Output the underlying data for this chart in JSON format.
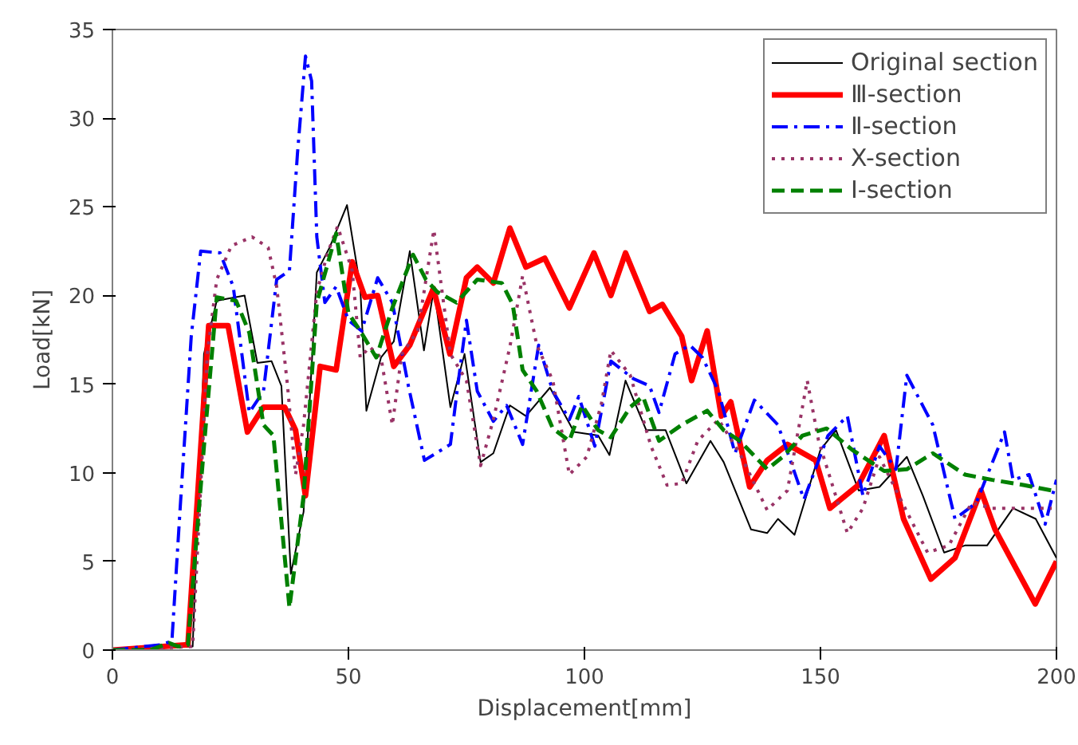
{
  "chart_data": {
    "type": "line",
    "xlabel": "Displacement[mm]",
    "ylabel": "Load[kN]",
    "xlim": [
      0,
      200
    ],
    "ylim": [
      0,
      35
    ],
    "xticks": [
      0,
      50,
      100,
      150,
      200
    ],
    "yticks": [
      0,
      5,
      10,
      15,
      20,
      25,
      30,
      35
    ],
    "grid": false,
    "legend": "top right",
    "marker": "none",
    "series": [
      {
        "name": "Original section",
        "color": "#000000",
        "line_style": "solid",
        "x": [
          0,
          17,
          19.4,
          22.1,
          28,
          30.7,
          33.7,
          35.8,
          37.8,
          40.5,
          43.3,
          46,
          49.7,
          52.5,
          53.8,
          56.9,
          59.6,
          63,
          66,
          68.1,
          71.6,
          74.6,
          78,
          80.7,
          84.2,
          87.6,
          92.7,
          97.8,
          102.9,
          105.3,
          108.7,
          113.1,
          117.2,
          121.6,
          126.7,
          129.5,
          135.3,
          138.7,
          141,
          144.5,
          150,
          153.3,
          158.1,
          162.5,
          168.3,
          171.7,
          176.2,
          180.6,
          185.3,
          190.8,
          195.6,
          200
        ],
        "values": [
          0,
          0.2,
          16.7,
          19.7,
          20,
          16.2,
          16.3,
          14.9,
          4.3,
          7.8,
          21.3,
          22.7,
          25.1,
          20.5,
          13.5,
          16.5,
          17.4,
          22.5,
          16.9,
          20.4,
          13.7,
          16.7,
          10.6,
          11.1,
          13.8,
          13.2,
          14.8,
          12.3,
          12.1,
          11.0,
          15.2,
          12.4,
          12.4,
          9.4,
          11.8,
          10.6,
          6.8,
          6.6,
          7.4,
          6.5,
          11.3,
          12.4,
          9.0,
          9.2,
          10.9,
          8.7,
          5.5,
          5.9,
          5.9,
          8.0,
          7.4,
          5.2
        ]
      },
      {
        "name": "Ⅲ-section",
        "color": "#ff0000",
        "line_style": "solid",
        "x": [
          0,
          16,
          20.4,
          24.5,
          28.6,
          32,
          36.5,
          38.8,
          40.9,
          44,
          47.4,
          50.8,
          53.5,
          56.2,
          59.6,
          63,
          68,
          71.5,
          75,
          77.3,
          80.7,
          84.2,
          87.6,
          91.6,
          96.8,
          102,
          105.6,
          108.7,
          113.8,
          116.5,
          120.6,
          122.7,
          126,
          129,
          131,
          135,
          138.7,
          143,
          149,
          152,
          158,
          163.5,
          167.6,
          173.4,
          178.5,
          184,
          187,
          195.5,
          200
        ],
        "values": [
          0,
          0.3,
          18.3,
          18.3,
          12.3,
          13.7,
          13.7,
          12.4,
          8.7,
          16,
          15.8,
          21.9,
          19.9,
          20.0,
          16,
          17.2,
          20.4,
          16.7,
          21,
          21.6,
          20.7,
          23.8,
          21.6,
          22.1,
          19.3,
          22.4,
          20.0,
          22.4,
          19.1,
          19.5,
          17.7,
          15.2,
          18,
          13.2,
          14,
          9.2,
          10.7,
          11.6,
          10.7,
          8.0,
          9.3,
          12.1,
          7.4,
          4.0,
          5.2,
          9.0,
          6.8,
          2.6,
          5.0
        ]
      },
      {
        "name": "Ⅱ-section",
        "color": "#0000ff",
        "line_style": "dashdot",
        "x": [
          0,
          10.2,
          12.6,
          14.3,
          16.7,
          18.7,
          22.8,
          25.6,
          29,
          32,
          34.8,
          37.5,
          39.2,
          40.9,
          42.2,
          43.3,
          45,
          47.4,
          50,
          52.8,
          56.2,
          59.3,
          62.7,
          66.1,
          71.6,
          73.3,
          75,
          77.3,
          80.7,
          83.5,
          86.9,
          90.3,
          93.3,
          96.8,
          98.8,
          102.2,
          105.6,
          110.4,
          113.8,
          115.8,
          119.2,
          122.3,
          125,
          128.4,
          131.9,
          136,
          141,
          146.5,
          151.6,
          155.7,
          159,
          162.5,
          166,
          168.3,
          173.8,
          178.5,
          183,
          189,
          190.8,
          194.2,
          197.6,
          200
        ],
        "values": [
          0,
          0.3,
          0.5,
          7.8,
          17.7,
          22.5,
          22.4,
          20.5,
          13.4,
          14.6,
          20.9,
          21.4,
          28.0,
          33.5,
          32.1,
          23.3,
          19.6,
          20.5,
          18.6,
          18,
          21,
          19.6,
          14.9,
          10.7,
          11.6,
          15.2,
          18.6,
          14.6,
          12.9,
          13.8,
          11.6,
          17.2,
          14.6,
          13.0,
          14.3,
          11.5,
          16.3,
          15.3,
          14.9,
          13.4,
          16.7,
          17.2,
          16.5,
          14.6,
          11.1,
          14.1,
          12.7,
          8.5,
          12.1,
          13.2,
          8.7,
          11.5,
          10.2,
          15.5,
          12.7,
          7.4,
          8.3,
          12.3,
          9.6,
          9.9,
          7.1,
          9.6
        ]
      },
      {
        "name": "X-section",
        "color": "#993366",
        "line_style": "dotted",
        "x": [
          0,
          17,
          20.1,
          22.1,
          25.2,
          29.6,
          33,
          34.8,
          37.1,
          38.8,
          40.5,
          43.3,
          45.6,
          47.7,
          50.8,
          52.5,
          54.5,
          56.9,
          59.3,
          61.3,
          64.7,
          68.1,
          71.6,
          75,
          78,
          80.7,
          84.2,
          86.9,
          89.9,
          93.3,
          96.8,
          100.5,
          103.6,
          105.6,
          109.7,
          114.1,
          117.5,
          120.6,
          124,
          128.4,
          132.9,
          138.7,
          143,
          147.2,
          149.6,
          155.7,
          159,
          162.5,
          168.3,
          172.7,
          177.2,
          182,
          186.4,
          193.2,
          199
        ],
        "values": [
          0,
          0.2,
          16.7,
          20.9,
          22.8,
          23.3,
          22.7,
          20.5,
          14.9,
          9.9,
          12.7,
          20.2,
          22.4,
          23.9,
          21.4,
          16.5,
          17.1,
          16.5,
          12.7,
          16.7,
          18,
          23.7,
          16.7,
          15.2,
          10.4,
          13.0,
          17.1,
          21.1,
          17.2,
          15.2,
          9.9,
          10.9,
          13.9,
          16.9,
          15.5,
          11.5,
          9.3,
          9.4,
          11.8,
          13,
          11.1,
          7.9,
          9.0,
          15.2,
          11.8,
          6.6,
          8.0,
          10.9,
          7.8,
          5.5,
          5.9,
          8.3,
          8.0,
          8.0,
          8.0
        ]
      },
      {
        "name": "Ⅰ-section",
        "color": "#008000",
        "line_style": "dashed",
        "x": [
          0,
          8,
          12,
          14,
          16,
          19.4,
          22.1,
          26.2,
          29,
          32,
          34.1,
          37.5,
          40.5,
          43.3,
          47.4,
          50,
          52.5,
          55.9,
          59.3,
          63.7,
          66.4,
          68.8,
          72.9,
          77.3,
          82.5,
          84.8,
          86.9,
          89.9,
          93.3,
          96.8,
          99.5,
          102.9,
          105.6,
          109.7,
          112.4,
          115.8,
          120.6,
          126,
          129.5,
          132.9,
          138.7,
          142,
          146.2,
          151.3,
          156.7,
          163.5,
          168.3,
          173.8,
          180.6,
          186.4,
          193.2,
          199
        ],
        "values": [
          0,
          0,
          0.4,
          0.2,
          0.3,
          11.5,
          19.9,
          19.7,
          17.9,
          12.7,
          12.1,
          2.4,
          8.7,
          19.6,
          23.5,
          19.0,
          18,
          16.5,
          19.3,
          22.3,
          20.9,
          20.2,
          19.6,
          20.9,
          20.7,
          19.5,
          15.8,
          14.6,
          12.5,
          11.8,
          13.8,
          12.4,
          12.0,
          13.7,
          14.3,
          11.8,
          12.7,
          13.5,
          12.4,
          11.8,
          10.2,
          10.9,
          12.1,
          12.5,
          11.3,
          10.1,
          10.2,
          11.1,
          9.9,
          9.6,
          9.3,
          9.0
        ]
      }
    ]
  }
}
